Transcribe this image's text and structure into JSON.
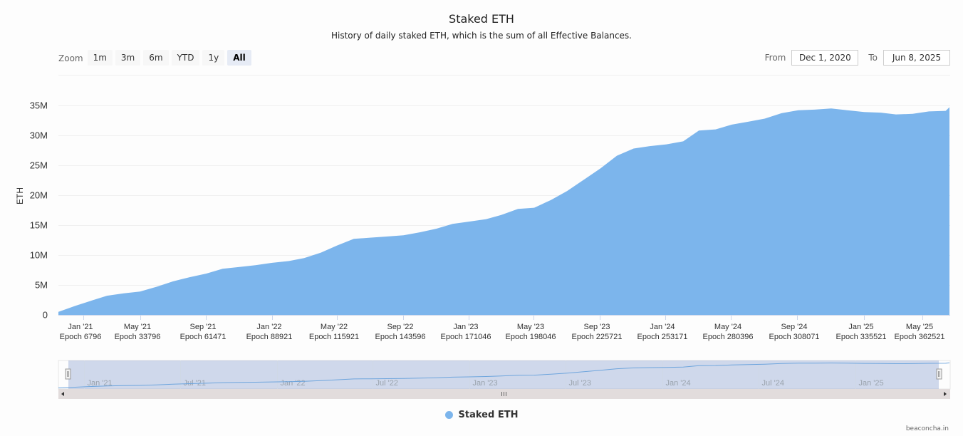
{
  "header": {
    "title": "Staked ETH",
    "subtitle": "History of daily staked ETH, which is the sum of all Effective Balances."
  },
  "range_selector": {
    "zoom_label": "Zoom",
    "buttons": [
      {
        "label": "1m",
        "active": false
      },
      {
        "label": "3m",
        "active": false
      },
      {
        "label": "6m",
        "active": false
      },
      {
        "label": "YTD",
        "active": false
      },
      {
        "label": "1y",
        "active": false
      },
      {
        "label": "All",
        "active": true
      }
    ],
    "from_label": "From",
    "from_value": "Dec 1, 2020",
    "to_label": "To",
    "to_value": "Jun 8, 2025"
  },
  "colors": {
    "series": "#7cb5ec",
    "grid": "#f0f0f0",
    "navigator_mask": "rgba(102,133,194,0.3)",
    "scrollbar": "#e2dcdc"
  },
  "legend": {
    "items": [
      {
        "label": "Staked ETH",
        "color": "#7cb5ec",
        "icon": "circle-marker-icon"
      }
    ]
  },
  "navigator": {
    "labels": [
      "Jan '21",
      "Jul '21",
      "Jan '22",
      "Jul '22",
      "Jan '23",
      "Jul '23",
      "Jan '24",
      "Jul '24",
      "Jan '25"
    ]
  },
  "credits": "beaconcha.in",
  "chart_data": {
    "type": "area",
    "title": "Staked ETH",
    "subtitle": "History of daily staked ETH, which is the sum of all Effective Balances.",
    "xlabel": "",
    "ylabel": "ETH",
    "ylim": [
      0,
      35000000
    ],
    "yticks": [
      "0",
      "5M",
      "10M",
      "15M",
      "20M",
      "25M",
      "30M",
      "35M"
    ],
    "xticks": [
      {
        "date": "Jan '21",
        "epoch": "Epoch 6796"
      },
      {
        "date": "May '21",
        "epoch": "Epoch 33796"
      },
      {
        "date": "Sep '21",
        "epoch": "Epoch 61471"
      },
      {
        "date": "Jan '22",
        "epoch": "Epoch 88921"
      },
      {
        "date": "May '22",
        "epoch": "Epoch 115921"
      },
      {
        "date": "Sep '22",
        "epoch": "Epoch 143596"
      },
      {
        "date": "Jan '23",
        "epoch": "Epoch 171046"
      },
      {
        "date": "May '23",
        "epoch": "Epoch 198046"
      },
      {
        "date": "Sep '23",
        "epoch": "Epoch 225721"
      },
      {
        "date": "Jan '24",
        "epoch": "Epoch 253171"
      },
      {
        "date": "May '24",
        "epoch": "Epoch 280396"
      },
      {
        "date": "Sep '24",
        "epoch": "Epoch 308071"
      },
      {
        "date": "Jan '25",
        "epoch": "Epoch 335521"
      },
      {
        "date": "May '25",
        "epoch": "Epoch 362521"
      }
    ],
    "grid": true,
    "legend_position": "bottom-center",
    "series": [
      {
        "name": "Staked ETH",
        "x": [
          "2020-12-01",
          "2021-01-01",
          "2021-02-01",
          "2021-03-01",
          "2021-04-01",
          "2021-05-01",
          "2021-06-01",
          "2021-07-01",
          "2021-08-01",
          "2021-09-01",
          "2021-10-01",
          "2021-11-01",
          "2021-12-01",
          "2022-01-01",
          "2022-02-01",
          "2022-03-01",
          "2022-04-01",
          "2022-05-01",
          "2022-06-01",
          "2022-07-01",
          "2022-08-01",
          "2022-09-01",
          "2022-10-01",
          "2022-11-01",
          "2022-12-01",
          "2023-01-01",
          "2023-02-01",
          "2023-03-01",
          "2023-04-01",
          "2023-05-01",
          "2023-06-01",
          "2023-07-01",
          "2023-08-01",
          "2023-09-01",
          "2023-10-01",
          "2023-11-01",
          "2023-12-01",
          "2024-01-01",
          "2024-02-01",
          "2024-03-01",
          "2024-04-01",
          "2024-05-01",
          "2024-06-01",
          "2024-07-01",
          "2024-08-01",
          "2024-09-01",
          "2024-10-01",
          "2024-11-01",
          "2024-12-01",
          "2025-01-01",
          "2025-02-01",
          "2025-03-01",
          "2025-04-01",
          "2025-05-01",
          "2025-06-01",
          "2025-06-08"
        ],
        "values_millions": [
          0.5,
          1.5,
          2.4,
          3.2,
          3.6,
          3.9,
          4.7,
          5.6,
          6.3,
          6.9,
          7.7,
          8.0,
          8.3,
          8.7,
          9.0,
          9.5,
          10.4,
          11.6,
          12.7,
          12.9,
          13.1,
          13.3,
          13.8,
          14.4,
          15.2,
          15.6,
          16.0,
          16.7,
          17.7,
          17.9,
          19.2,
          20.7,
          22.6,
          24.5,
          26.6,
          27.8,
          28.2,
          28.5,
          29.0,
          30.8,
          31.0,
          31.8,
          32.3,
          32.8,
          33.7,
          34.2,
          34.3,
          34.5,
          34.2,
          33.9,
          33.8,
          33.5,
          33.6,
          34.0,
          34.1,
          34.7
        ]
      }
    ]
  }
}
